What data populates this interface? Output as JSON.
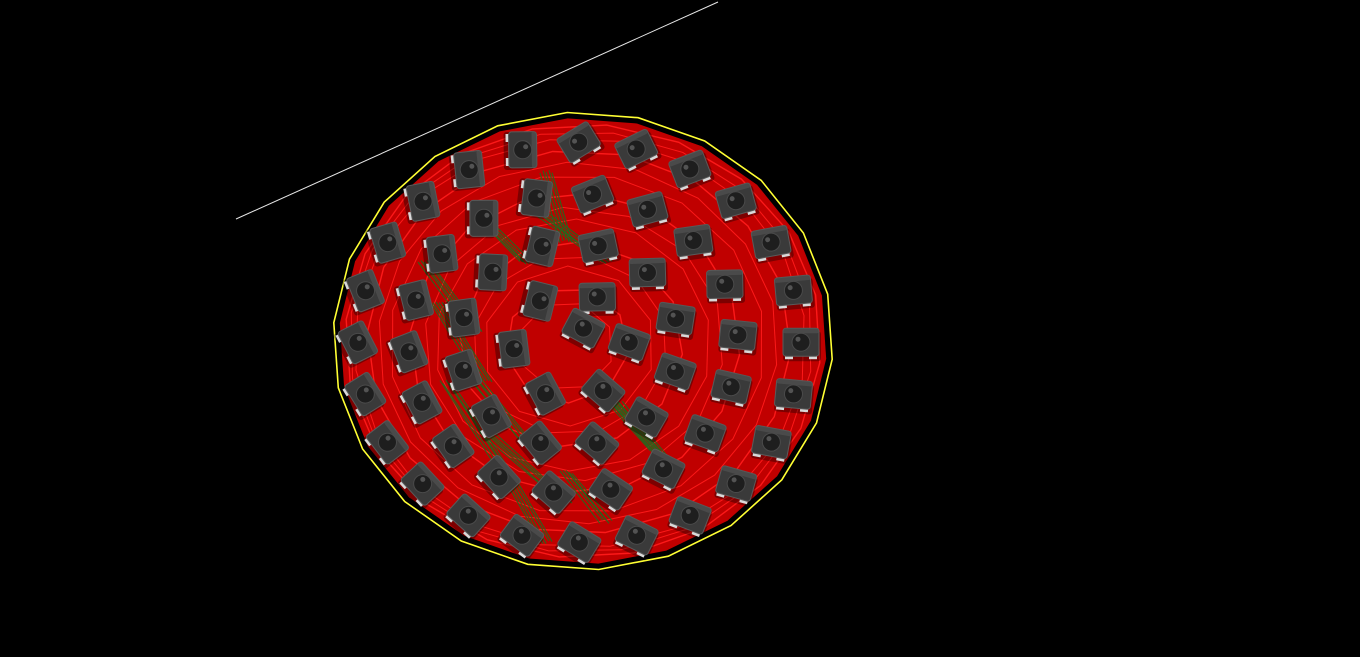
{
  "viewer": {
    "background_color": "#000000",
    "board_fill_color": "#c00000",
    "trace_color": "#ff1a1a",
    "inner_trace_color": "#1f6b1f",
    "outline_color": "#ffff33",
    "guide_line_color": "#e6e6e6",
    "pad_color": "#d9d9d9",
    "component_body_color": "#3a3a3a",
    "component_dome_color": "#1e1e1e",
    "component_count": 61,
    "component_type": "smd-led-package"
  }
}
